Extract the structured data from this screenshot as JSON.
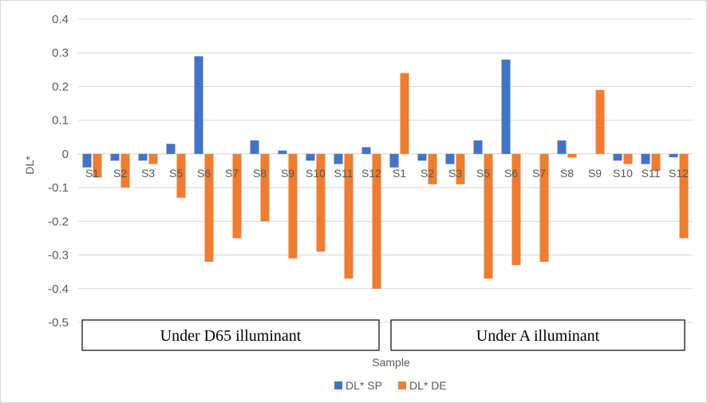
{
  "chart_data": {
    "type": "bar",
    "xlabel": "Sample",
    "ylabel": "DL*",
    "ylim": [
      -0.5,
      0.4
    ],
    "yticks": [
      "0.4",
      "0.3",
      "0.2",
      "0.1",
      "0",
      "-0.1",
      "-0.2",
      "-0.3",
      "-0.4",
      "-0.5"
    ],
    "grid": true,
    "legend_position": "bottom",
    "categories": [
      "S1",
      "S2",
      "S3",
      "S5",
      "S6",
      "S7",
      "S8",
      "S9",
      "S10",
      "S11",
      "S12",
      "S1",
      "S2",
      "S3",
      "S5",
      "S6",
      "S7",
      "S8",
      "S9",
      "S10",
      "S11",
      "S12"
    ],
    "groups": [
      {
        "label": "Under D65 illuminant",
        "start": 0,
        "count": 11
      },
      {
        "label": "Under A illuminant",
        "start": 11,
        "count": 11
      }
    ],
    "series": [
      {
        "name": "DL* SP",
        "color": "#4472C4",
        "values": [
          -0.04,
          -0.02,
          -0.02,
          0.03,
          0.29,
          0,
          0.04,
          0.01,
          -0.02,
          -0.03,
          0.02,
          -0.04,
          -0.02,
          -0.03,
          0.04,
          0.28,
          0,
          0.04,
          0,
          -0.02,
          -0.03,
          -0.01
        ]
      },
      {
        "name": "DL* DE",
        "color": "#ED7D31",
        "values": [
          -0.07,
          -0.1,
          -0.03,
          -0.13,
          -0.32,
          -0.25,
          -0.2,
          -0.31,
          -0.29,
          -0.37,
          -0.4,
          0.24,
          -0.09,
          -0.09,
          -0.37,
          -0.33,
          -0.32,
          -0.01,
          0.19,
          -0.03,
          -0.05,
          -0.25
        ]
      }
    ]
  }
}
